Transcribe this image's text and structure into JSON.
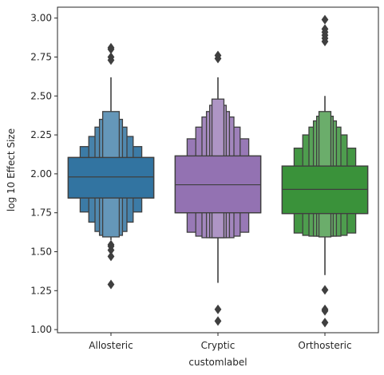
{
  "chart_data": {
    "type": "boxen",
    "title": "",
    "xlabel": "customlabel",
    "ylabel": "log 10 Effect Size",
    "ylim": [
      0.98,
      3.07
    ],
    "yticks": [
      "1.00",
      "1.25",
      "1.50",
      "1.75",
      "2.00",
      "2.25",
      "2.50",
      "2.75",
      "3.00"
    ],
    "grid": false,
    "legend": "none",
    "categories": [
      "Allosteric",
      "Cryptic",
      "Orthosteric"
    ],
    "series": [
      {
        "category": "Allosteric",
        "color": "#3274a1",
        "median": 1.98,
        "boxes": [
          [
            1.845,
            2.105
          ],
          [
            1.755,
            2.175
          ],
          [
            1.69,
            2.24
          ],
          [
            1.63,
            2.3
          ],
          [
            1.605,
            2.35
          ],
          [
            1.595,
            2.4
          ]
        ],
        "whisker": [
          1.575,
          2.62
        ],
        "outliers": [
          2.81,
          2.8,
          2.75,
          2.73,
          1.545,
          1.535,
          1.51,
          1.47,
          1.29
        ]
      },
      {
        "category": "Cryptic",
        "color": "#9372b2",
        "median": 1.93,
        "boxes": [
          [
            1.75,
            2.115
          ],
          [
            1.625,
            2.225
          ],
          [
            1.6,
            2.3
          ],
          [
            1.59,
            2.365
          ],
          [
            1.59,
            2.4
          ],
          [
            1.59,
            2.44
          ],
          [
            1.59,
            2.48
          ]
        ],
        "whisker": [
          1.3,
          2.62
        ],
        "outliers": [
          2.76,
          2.74,
          1.13,
          1.055
        ]
      },
      {
        "category": "Orthosteric",
        "color": "#3a923a",
        "median": 1.9,
        "boxes": [
          [
            1.745,
            2.05
          ],
          [
            1.62,
            2.165
          ],
          [
            1.605,
            2.25
          ],
          [
            1.6,
            2.3
          ],
          [
            1.6,
            2.34
          ],
          [
            1.6,
            2.37
          ],
          [
            1.595,
            2.4
          ]
        ],
        "whisker": [
          1.35,
          2.5
        ],
        "outliers": [
          2.99,
          2.93,
          2.91,
          2.89,
          2.87,
          2.85,
          1.255,
          1.13,
          1.12,
          1.045
        ]
      }
    ]
  }
}
